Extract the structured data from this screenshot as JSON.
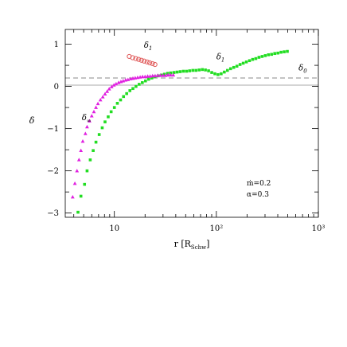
{
  "chart_data": {
    "type": "scatter",
    "xscale": "log",
    "xlim": [
      3.3,
      1000
    ],
    "ylim": [
      -3.1,
      1.35
    ],
    "xlabel_main": "r [R",
    "xlabel_sub": "Schw",
    "xlabel_end": "]",
    "ylabel": "δ",
    "xticks": [
      10,
      100,
      1000
    ],
    "xtick_labels": [
      "10",
      "10²",
      "10³"
    ],
    "yticks": [
      1,
      0,
      -1,
      -2,
      -3
    ],
    "ytick_labels": [
      "1",
      "0",
      "−1",
      "−2",
      "−3"
    ],
    "reference_lines": [
      {
        "y": 0.2,
        "style": "dashed",
        "color": "#8a8a8a"
      },
      {
        "y": 0.03,
        "style": "solid",
        "color": "#aaaaaa"
      }
    ],
    "annotations": [
      "ṁ=0.2",
      "α=0.3"
    ],
    "series": [
      {
        "name": "δ",
        "name_sub": "1",
        "marker": "circle-open",
        "color": "#e05a5a",
        "points": [
          [
            14.0,
            0.71
          ],
          [
            15.1,
            0.68
          ],
          [
            16.2,
            0.66
          ],
          [
            17.3,
            0.64
          ],
          [
            18.4,
            0.62
          ],
          [
            19.6,
            0.6
          ],
          [
            20.9,
            0.58
          ],
          [
            22.2,
            0.56
          ],
          [
            23.6,
            0.54
          ],
          [
            25.0,
            0.52
          ]
        ]
      },
      {
        "name": "δ",
        "name_sub": "1",
        "marker": "square",
        "color": "#22dd22",
        "points": [
          [
            4.4,
            -2.98
          ],
          [
            4.7,
            -2.6
          ],
          [
            5.1,
            -2.32
          ],
          [
            5.4,
            -2.0
          ],
          [
            5.8,
            -1.74
          ],
          [
            6.2,
            -1.52
          ],
          [
            6.6,
            -1.32
          ],
          [
            7.1,
            -1.14
          ],
          [
            7.6,
            -0.98
          ],
          [
            8.1,
            -0.84
          ],
          [
            8.7,
            -0.72
          ],
          [
            9.3,
            -0.6
          ],
          [
            10.0,
            -0.5
          ],
          [
            10.7,
            -0.4
          ],
          [
            11.5,
            -0.32
          ],
          [
            12.3,
            -0.24
          ],
          [
            13.2,
            -0.17
          ],
          [
            14.2,
            -0.1
          ],
          [
            15.2,
            -0.05
          ],
          [
            16.3,
            0.0
          ],
          [
            17.5,
            0.05
          ],
          [
            18.8,
            0.09
          ],
          [
            20.2,
            0.13
          ],
          [
            21.7,
            0.17
          ],
          [
            23.3,
            0.2
          ],
          [
            25.0,
            0.23
          ],
          [
            26.9,
            0.25
          ],
          [
            28.9,
            0.27
          ],
          [
            31.0,
            0.29
          ],
          [
            33.3,
            0.31
          ],
          [
            35.7,
            0.32
          ],
          [
            38.4,
            0.33
          ],
          [
            41.2,
            0.34
          ],
          [
            44.2,
            0.35
          ],
          [
            47.5,
            0.36
          ],
          [
            51.0,
            0.36
          ],
          [
            54.7,
            0.37
          ],
          [
            58.8,
            0.38
          ],
          [
            63.1,
            0.38
          ],
          [
            67.8,
            0.39
          ],
          [
            72.8,
            0.4
          ],
          [
            78.1,
            0.39
          ],
          [
            83.9,
            0.37
          ],
          [
            90.1,
            0.33
          ],
          [
            96.7,
            0.3
          ],
          [
            103.8,
            0.28
          ],
          [
            111.5,
            0.3
          ],
          [
            119.7,
            0.34
          ],
          [
            128.5,
            0.38
          ],
          [
            138.0,
            0.42
          ],
          [
            148.2,
            0.45
          ],
          [
            159.1,
            0.48
          ],
          [
            170.8,
            0.52
          ],
          [
            183.4,
            0.55
          ],
          [
            196.9,
            0.58
          ],
          [
            211.4,
            0.61
          ],
          [
            227.0,
            0.64
          ],
          [
            243.7,
            0.66
          ],
          [
            261.7,
            0.69
          ],
          [
            281.0,
            0.71
          ],
          [
            301.7,
            0.73
          ],
          [
            323.9,
            0.75
          ],
          [
            347.8,
            0.76
          ],
          [
            373.4,
            0.78
          ],
          [
            401.0,
            0.79
          ],
          [
            430.5,
            0.81
          ],
          [
            462.3,
            0.82
          ],
          [
            496.4,
            0.83
          ]
        ]
      },
      {
        "name": "δ",
        "name_sub": "∞",
        "marker": "triangle",
        "color": "#e020e0",
        "points": [
          [
            3.9,
            -2.62
          ],
          [
            4.1,
            -2.3
          ],
          [
            4.3,
            -2.0
          ],
          [
            4.5,
            -1.74
          ],
          [
            4.7,
            -1.52
          ],
          [
            4.9,
            -1.3
          ],
          [
            5.2,
            -1.12
          ],
          [
            5.4,
            -0.96
          ],
          [
            5.7,
            -0.82
          ],
          [
            6.0,
            -0.7
          ],
          [
            6.3,
            -0.6
          ],
          [
            6.6,
            -0.5
          ],
          [
            6.9,
            -0.41
          ],
          [
            7.3,
            -0.32
          ],
          [
            7.7,
            -0.25
          ],
          [
            8.1,
            -0.18
          ],
          [
            8.5,
            -0.12
          ],
          [
            8.9,
            -0.06
          ],
          [
            9.4,
            -0.01
          ],
          [
            9.9,
            0.03
          ],
          [
            10.4,
            0.06
          ],
          [
            11.0,
            0.09
          ],
          [
            11.6,
            0.11
          ],
          [
            12.2,
            0.13
          ],
          [
            12.9,
            0.15
          ],
          [
            13.6,
            0.16
          ],
          [
            14.4,
            0.18
          ],
          [
            15.2,
            0.19
          ],
          [
            16.0,
            0.2
          ],
          [
            16.9,
            0.21
          ],
          [
            17.9,
            0.22
          ],
          [
            18.9,
            0.23
          ],
          [
            20.0,
            0.23
          ],
          [
            21.2,
            0.24
          ],
          [
            22.4,
            0.24
          ],
          [
            23.7,
            0.25
          ],
          [
            25.1,
            0.25
          ],
          [
            26.6,
            0.26
          ],
          [
            28.2,
            0.26
          ],
          [
            29.9,
            0.26
          ],
          [
            31.7,
            0.26
          ],
          [
            33.6,
            0.27
          ],
          [
            35.6,
            0.27
          ],
          [
            37.8,
            0.27
          ]
        ]
      }
    ],
    "labels": [
      {
        "text": "δ",
        "sub": "1",
        "x": 19.5,
        "y": 0.92
      },
      {
        "text": "δ",
        "sub": "1",
        "x": 100,
        "y": 0.64
      },
      {
        "text": "δ",
        "sub": "0",
        "x": 640,
        "y": 0.38
      },
      {
        "text": "δ",
        "sub": "∞",
        "x": 4.8,
        "y": -0.8
      }
    ]
  }
}
